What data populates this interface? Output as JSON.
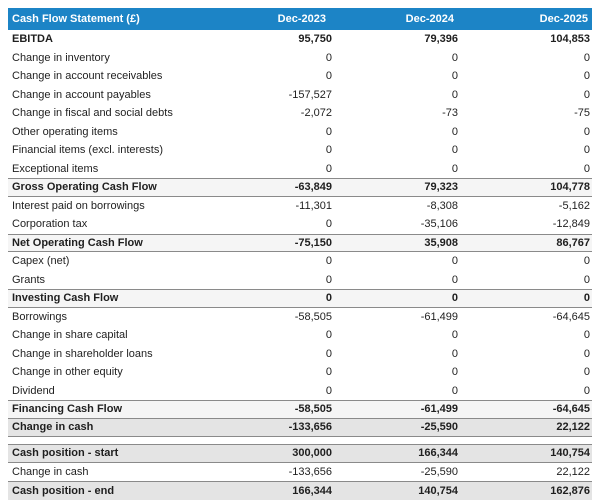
{
  "colors": {
    "header_bg": "#1c84c6",
    "header_text": "#ffffff",
    "body_text": "#1f1f1f",
    "subtotal_row_bg": "#f5f5f5",
    "total_row_bg": "#e4e4e4",
    "row_border": "#8a8a8a"
  },
  "table": {
    "title": "Cash Flow Statement (£)",
    "columns": [
      "Dec-2023",
      "Dec-2024",
      "Dec-2025"
    ],
    "rows": [
      {
        "label": "EBITDA",
        "values": [
          "95,750",
          "79,396",
          "104,853"
        ],
        "style": "bold"
      },
      {
        "label": "Change in inventory",
        "values": [
          "0",
          "0",
          "0"
        ],
        "style": "normal"
      },
      {
        "label": "Change in account receivables",
        "values": [
          "0",
          "0",
          "0"
        ],
        "style": "normal"
      },
      {
        "label": "Change in account payables",
        "values": [
          "-157,527",
          "0",
          "0"
        ],
        "style": "normal"
      },
      {
        "label": "Change in fiscal and social debts",
        "values": [
          "-2,072",
          "-73",
          "-75"
        ],
        "style": "normal"
      },
      {
        "label": "Other operating items",
        "values": [
          "0",
          "0",
          "0"
        ],
        "style": "normal"
      },
      {
        "label": "Financial items (excl. interests)",
        "values": [
          "0",
          "0",
          "0"
        ],
        "style": "normal"
      },
      {
        "label": "Exceptional items",
        "values": [
          "0",
          "0",
          "0"
        ],
        "style": "normal"
      },
      {
        "label": "Gross Operating Cash Flow",
        "values": [
          "-63,849",
          "79,323",
          "104,778"
        ],
        "style": "subtotal"
      },
      {
        "label": "Interest paid on borrowings",
        "values": [
          "-11,301",
          "-8,308",
          "-5,162"
        ],
        "style": "normal"
      },
      {
        "label": "Corporation tax",
        "values": [
          "0",
          "-35,106",
          "-12,849"
        ],
        "style": "normal"
      },
      {
        "label": "Net Operating Cash Flow",
        "values": [
          "-75,150",
          "35,908",
          "86,767"
        ],
        "style": "subtotal"
      },
      {
        "label": "Capex (net)",
        "values": [
          "0",
          "0",
          "0"
        ],
        "style": "normal"
      },
      {
        "label": "Grants",
        "values": [
          "0",
          "0",
          "0"
        ],
        "style": "normal"
      },
      {
        "label": "Investing Cash Flow",
        "values": [
          "0",
          "0",
          "0"
        ],
        "style": "subtotal"
      },
      {
        "label": "Borrowings",
        "values": [
          "-58,505",
          "-61,499",
          "-64,645"
        ],
        "style": "normal"
      },
      {
        "label": "Change in share capital",
        "values": [
          "0",
          "0",
          "0"
        ],
        "style": "normal"
      },
      {
        "label": "Change in shareholder loans",
        "values": [
          "0",
          "0",
          "0"
        ],
        "style": "normal"
      },
      {
        "label": "Change in other equity",
        "values": [
          "0",
          "0",
          "0"
        ],
        "style": "normal"
      },
      {
        "label": "Dividend",
        "values": [
          "0",
          "0",
          "0"
        ],
        "style": "normal"
      },
      {
        "label": "Financing Cash Flow",
        "values": [
          "-58,505",
          "-61,499",
          "-64,645"
        ],
        "style": "subtotal"
      },
      {
        "label": "Change in cash",
        "values": [
          "-133,656",
          "-25,590",
          "22,122"
        ],
        "style": "total"
      },
      {
        "label": "Cash position - start",
        "values": [
          "300,000",
          "166,344",
          "140,754"
        ],
        "style": "total",
        "gap_before": true
      },
      {
        "label": "Change in cash",
        "values": [
          "-133,656",
          "-25,590",
          "22,122"
        ],
        "style": "normal"
      },
      {
        "label": "Cash position - end",
        "values": [
          "166,344",
          "140,754",
          "162,876"
        ],
        "style": "total"
      }
    ]
  }
}
